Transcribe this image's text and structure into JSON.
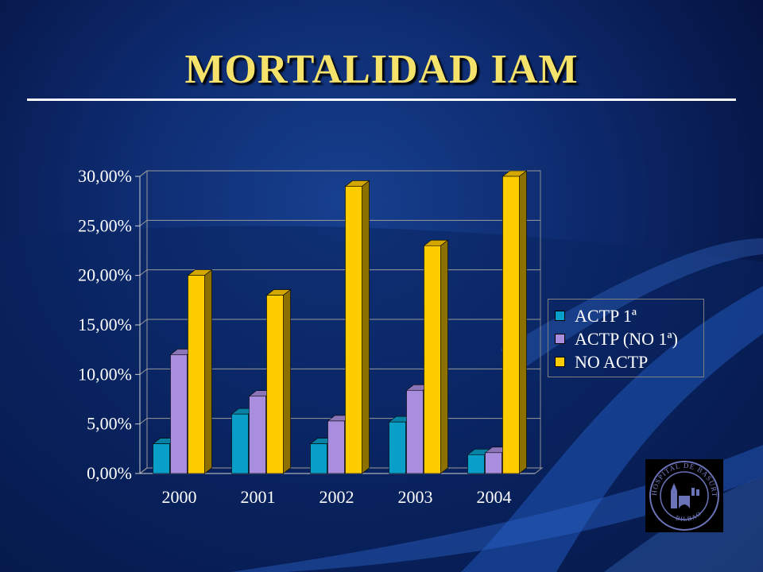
{
  "slide": {
    "title": "MORTALIDAD IAM"
  },
  "colors": {
    "title": "#f4e26a",
    "background": "#0d2a6e"
  },
  "logo": {
    "name": "hospital-de-basurto-seal-icon",
    "text": "HOSPITAL DE BASURTO · BILBAO"
  },
  "chart_data": {
    "type": "bar",
    "title": "",
    "xlabel": "",
    "ylabel": "",
    "categories": [
      "2000",
      "2001",
      "2002",
      "2003",
      "2004"
    ],
    "ylim": [
      0,
      30
    ],
    "yticks": [
      "0,00%",
      "5,00%",
      "10,00%",
      "15,00%",
      "20,00%",
      "25,00%",
      "30,00%"
    ],
    "ytick_values": [
      0,
      5,
      10,
      15,
      20,
      25,
      30
    ],
    "grid": true,
    "legend_position": "right",
    "series": [
      {
        "name": "ACTP 1ª",
        "color": "#0a9fc8",
        "values": [
          3.0,
          6.0,
          3.0,
          5.2,
          1.9
        ]
      },
      {
        "name": "ACTP (NO 1ª)",
        "color": "#a98ee0",
        "values": [
          12.0,
          7.8,
          5.3,
          8.4,
          2.1
        ]
      },
      {
        "name": "NO ACTP",
        "color": "#ffcc00",
        "values": [
          20.0,
          18.0,
          29.0,
          23.0,
          30.0
        ]
      }
    ]
  }
}
